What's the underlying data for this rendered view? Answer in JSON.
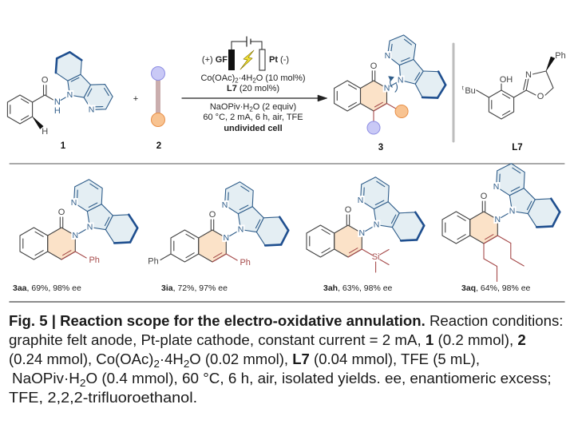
{
  "atoms": {
    "N": "N",
    "O": "O",
    "H": "H",
    "Ph": "Ph",
    "Si": "Si",
    "OH": "OH",
    "Bu": "Bu",
    "t": "t"
  },
  "scheme": {
    "compound_labels": {
      "substrate": "1",
      "alkyne": "2",
      "product": "3",
      "ligand": "L7"
    },
    "plus": "+",
    "anode": [
      {
        "t": "(+) ",
        "s": ""
      },
      {
        "t": "GF",
        "s": "b"
      }
    ],
    "cathode": [
      {
        "t": "Pt",
        "s": "b"
      },
      {
        "t": " (-)",
        "s": ""
      }
    ],
    "conditions_above": [
      [
        {
          "t": "Co(OAc)",
          "s": ""
        },
        {
          "t": "2",
          "s": "sub"
        },
        {
          "t": "·4H",
          "s": ""
        },
        {
          "t": "2",
          "s": "sub"
        },
        {
          "t": "O (10 mol%)",
          "s": ""
        }
      ],
      [
        {
          "t": "L7",
          "s": "b"
        },
        {
          "t": " (20 mol%)",
          "s": ""
        }
      ]
    ],
    "conditions_below": [
      [
        {
          "t": "NaOPiv·H",
          "s": ""
        },
        {
          "t": "2",
          "s": "sub"
        },
        {
          "t": "O (2 equiv)",
          "s": ""
        }
      ],
      [
        {
          "t": "60 °C, 2 mA, 6 h, air, TFE",
          "s": ""
        }
      ],
      [
        {
          "t": "undivided cell",
          "s": "b"
        }
      ]
    ]
  },
  "products": [
    {
      "id": "3aa",
      "result": ", 69%, 98% ee"
    },
    {
      "id": "3ia",
      "result": ", 72%, 97% ee"
    },
    {
      "id": "3ah",
      "result": ", 63%, 98% ee"
    },
    {
      "id": "3aq",
      "result": ", 64%, 98% ee"
    }
  ],
  "caption": {
    "lines": [
      [
        {
          "t": "Fig. 5 | Reaction scope for the electro-oxidative annulation.",
          "s": "b"
        },
        {
          "t": " Reaction conditions:",
          "s": ""
        }
      ],
      [
        {
          "t": "graphite felt anode, Pt-plate cathode, constant current = 2 mA, ",
          "s": ""
        },
        {
          "t": "1",
          "s": "b"
        },
        {
          "t": " (0.2 mmol), ",
          "s": ""
        },
        {
          "t": "2",
          "s": "b"
        }
      ],
      [
        {
          "t": "(0.24 mmol), Co(OAc)",
          "s": ""
        },
        {
          "t": "2",
          "s": "sub"
        },
        {
          "t": "·4H",
          "s": ""
        },
        {
          "t": "2",
          "s": "sub"
        },
        {
          "t": "O (0.02 mmol), ",
          "s": ""
        },
        {
          "t": "L7",
          "s": "b"
        },
        {
          "t": " (0.04 mmol), TFE (5 mL),",
          "s": ""
        }
      ],
      [
        {
          "t": "NaOPiv·H",
          "s": ""
        },
        {
          "t": "2",
          "s": "sub"
        },
        {
          "t": "O (0.4 mmol), 60 °C, 6 h, air, isolated yields. ee, enantiomeric excess;",
          "s": ""
        }
      ],
      [
        {
          "t": "TFE, 2,2,2-trifluoroethanol.",
          "s": ""
        }
      ]
    ]
  },
  "colors": {
    "bond": "#444444",
    "carboline_stroke": "#2f5d8a",
    "carboline_fill": "#e4eef3",
    "carboline_bold": "#1f4f8f",
    "pyridone_fill": "#fbe2c8",
    "substituent": "#a64b4b",
    "alkyne_purple": "#c9c9f6",
    "alkyne_orange": "#f8c391",
    "bolt": "#f2e23a"
  }
}
